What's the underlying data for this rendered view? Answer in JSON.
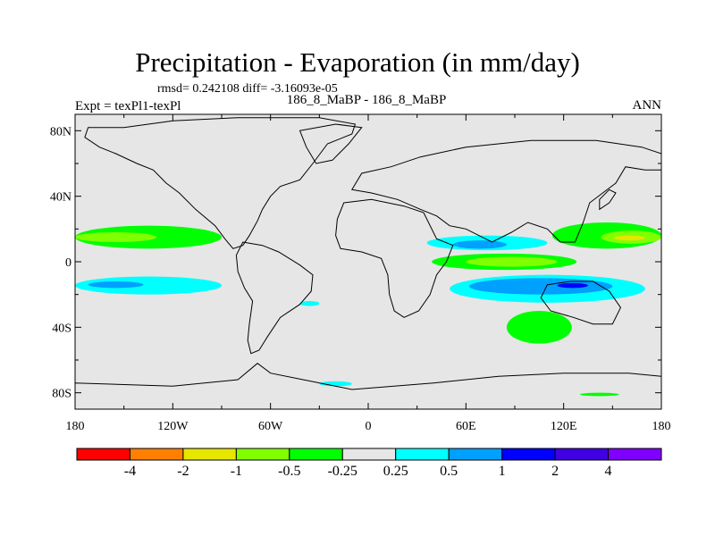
{
  "title": "Precipitation - Evaporation (in mm/day)",
  "stats_line": "rmsd= 0.242108 diff= -3.16093e-05",
  "experiment_label": "Expt = texPl1-texPl",
  "case_label": "186_8_MaBP - 186_8_MaBP",
  "season_label": "ANN",
  "chart_data": {
    "type": "heatmap",
    "title": "Precipitation - Evaporation (in mm/day)",
    "projection": "cylindrical equidistant",
    "xlim": [
      180,
      540
    ],
    "ylim": [
      -90,
      90
    ],
    "x_ticks": [
      {
        "value": 180,
        "label": "180"
      },
      {
        "value": 240,
        "label": "120W"
      },
      {
        "value": 300,
        "label": "60W"
      },
      {
        "value": 360,
        "label": "0"
      },
      {
        "value": 420,
        "label": "60E"
      },
      {
        "value": 480,
        "label": "120E"
      },
      {
        "value": 540,
        "label": "180"
      }
    ],
    "y_ticks": [
      {
        "value": 80,
        "label": "80N"
      },
      {
        "value": 40,
        "label": "40N"
      },
      {
        "value": 0,
        "label": "0"
      },
      {
        "value": -40,
        "label": "40S"
      },
      {
        "value": -80,
        "label": "80S"
      }
    ],
    "background_color": "#e6e6e6",
    "levels": [
      "-4",
      "-2",
      "-1",
      "-0.5",
      "-0.25",
      "0.25",
      "0.5",
      "1",
      "2",
      "4"
    ],
    "colorbar": [
      "#ff0000",
      "#ff8000",
      "#e6e600",
      "#80ff00",
      "#00ff00",
      "#e6e6e6",
      "#00ffff",
      "#00a0ff",
      "#0000ff",
      "#4000e0",
      "#8000ff"
    ],
    "regions": [
      {
        "color": "#00ff00",
        "lon": [
          180,
          270
        ],
        "lat": [
          8,
          22
        ]
      },
      {
        "color": "#80ff00",
        "lon": [
          180,
          230
        ],
        "lat": [
          12,
          18
        ]
      },
      {
        "color": "#00ffff",
        "lon": [
          180,
          270
        ],
        "lat": [
          -20,
          -9
        ]
      },
      {
        "color": "#00a0ff",
        "lon": [
          188,
          222
        ],
        "lat": [
          -16,
          -12
        ]
      },
      {
        "color": "#00ffff",
        "lon": [
          318,
          330
        ],
        "lat": [
          -27,
          -24
        ]
      },
      {
        "color": "#00ffff",
        "lon": [
          330,
          350
        ],
        "lat": [
          -76,
          -73
        ]
      },
      {
        "color": "#00ff00",
        "lon": [
          490,
          514
        ],
        "lat": [
          -82,
          -80
        ]
      },
      {
        "color": "#00ffff",
        "lon": [
          396,
          470
        ],
        "lat": [
          7,
          16
        ]
      },
      {
        "color": "#00a0ff",
        "lon": [
          412,
          445
        ],
        "lat": [
          8,
          13
        ]
      },
      {
        "color": "#00ff00",
        "lon": [
          399,
          488
        ],
        "lat": [
          -5,
          5
        ]
      },
      {
        "color": "#80ff00",
        "lon": [
          420,
          476
        ],
        "lat": [
          -3,
          3
        ]
      },
      {
        "color": "#00ffff",
        "lon": [
          410,
          530
        ],
        "lat": [
          -25,
          -8
        ]
      },
      {
        "color": "#00a0ff",
        "lon": [
          422,
          510
        ],
        "lat": [
          -20,
          -10
        ]
      },
      {
        "color": "#0000ff",
        "lon": [
          476,
          495
        ],
        "lat": [
          -16,
          -13
        ]
      },
      {
        "color": "#00ff00",
        "lon": [
          473,
          540
        ],
        "lat": [
          8,
          24
        ]
      },
      {
        "color": "#80ff00",
        "lon": [
          503,
          540
        ],
        "lat": [
          11,
          19
        ]
      },
      {
        "color": "#e6e600",
        "lon": [
          511,
          530
        ],
        "lat": [
          13,
          16
        ]
      },
      {
        "color": "#00ff00",
        "lon": [
          445,
          485
        ],
        "lat": [
          -50,
          -30
        ]
      }
    ],
    "coastline": "lon/lat polygon outlines of land masses"
  }
}
